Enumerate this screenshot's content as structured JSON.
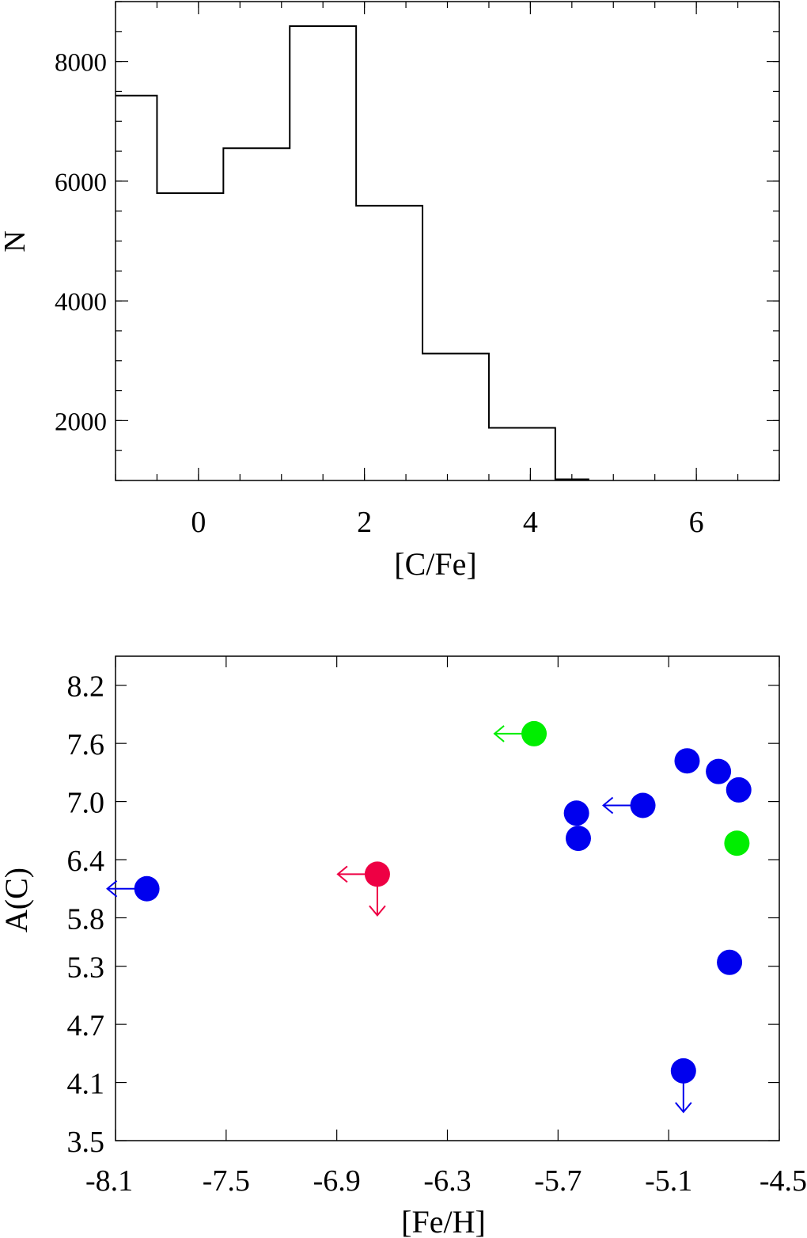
{
  "chart_data": [
    {
      "type": "histogram",
      "xlabel": "[C/Fe]",
      "ylabel": "N",
      "xlim": [
        -1,
        7
      ],
      "ylim": [
        1000,
        9000
      ],
      "x_ticks": [
        0,
        2,
        4,
        6
      ],
      "y_ticks": [
        2000,
        4000,
        6000,
        8000
      ],
      "x_minor_step": 0.5,
      "y_minor_step": 500,
      "bin_edges": [
        -1.0,
        -0.5,
        0.3,
        1.1,
        1.9,
        2.7,
        3.5,
        4.3,
        4.7
      ],
      "counts": [
        7430,
        5800,
        6550,
        8590,
        5590,
        3120,
        1880,
        1020
      ],
      "line_color": "#000000",
      "grid": false,
      "legend": "none"
    },
    {
      "type": "scatter",
      "xlabel": "[Fe/H]",
      "ylabel": "A(C)",
      "xlim": [
        -8.1,
        -4.5
      ],
      "ylim": [
        3.5,
        8.5
      ],
      "x_ticks": [
        -8.1,
        -7.5,
        -6.9,
        -6.3,
        -5.7,
        -5.1,
        -4.5
      ],
      "y_ticks": [
        3.5,
        4.1,
        4.7,
        5.3,
        5.8,
        6.4,
        7.0,
        7.6,
        8.2
      ],
      "grid": false,
      "legend": "none",
      "points": [
        {
          "x": -7.93,
          "y": 6.1,
          "color": "#0000ee",
          "upper_limit_x": true,
          "upper_limit_y": false
        },
        {
          "x": -6.68,
          "y": 6.25,
          "color": "#ee0044",
          "upper_limit_x": true,
          "upper_limit_y": true
        },
        {
          "x": -5.83,
          "y": 7.7,
          "color": "#00ee00",
          "upper_limit_x": true,
          "upper_limit_y": false
        },
        {
          "x": -5.6,
          "y": 6.88,
          "color": "#0000ee",
          "upper_limit_x": false,
          "upper_limit_y": false
        },
        {
          "x": -5.59,
          "y": 6.62,
          "color": "#0000ee",
          "upper_limit_x": false,
          "upper_limit_y": false
        },
        {
          "x": -5.24,
          "y": 6.96,
          "color": "#0000ee",
          "upper_limit_x": true,
          "upper_limit_y": false
        },
        {
          "x": -5.0,
          "y": 7.42,
          "color": "#0000ee",
          "upper_limit_x": false,
          "upper_limit_y": false
        },
        {
          "x": -4.83,
          "y": 7.31,
          "color": "#0000ee",
          "upper_limit_x": false,
          "upper_limit_y": false
        },
        {
          "x": -4.72,
          "y": 7.12,
          "color": "#0000ee",
          "upper_limit_x": false,
          "upper_limit_y": false
        },
        {
          "x": -4.73,
          "y": 6.57,
          "color": "#00ee00",
          "upper_limit_x": false,
          "upper_limit_y": false
        },
        {
          "x": -4.77,
          "y": 5.34,
          "color": "#0000ee",
          "upper_limit_x": false,
          "upper_limit_y": false
        },
        {
          "x": -5.02,
          "y": 4.22,
          "color": "#0000ee",
          "upper_limit_x": false,
          "upper_limit_y": true
        }
      ]
    }
  ]
}
